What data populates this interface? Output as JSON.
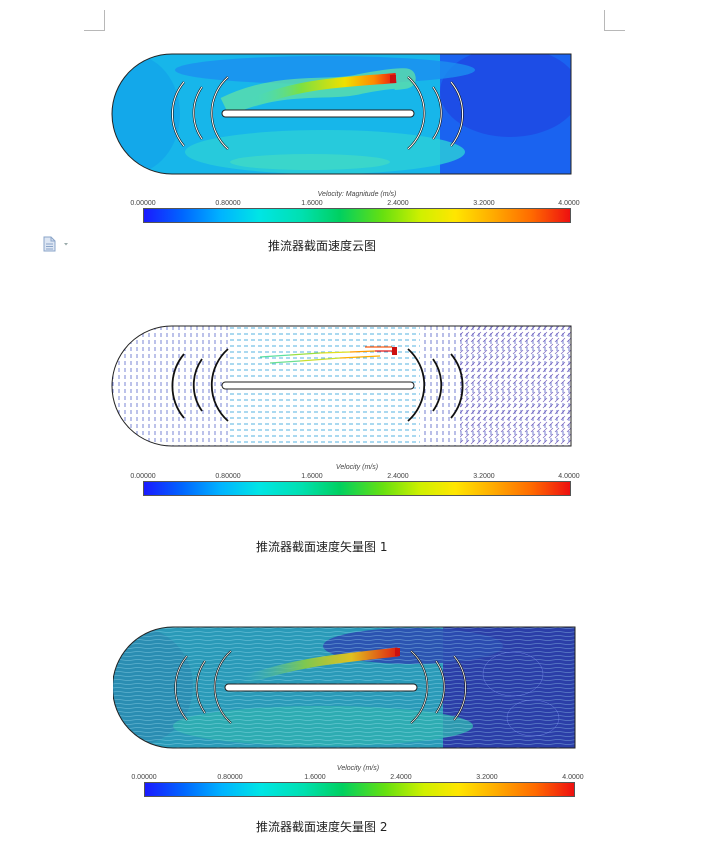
{
  "figures": [
    {
      "colorbar_title": "Velocity: Magnitude (m/s)",
      "ticks": [
        "0.00000",
        "0.80000",
        "1.6000",
        "2.4000",
        "3.2000",
        "4.0000"
      ],
      "caption": "推流器截面速度云图"
    },
    {
      "colorbar_title": "Velocity (m/s)",
      "ticks": [
        "0.00000",
        "0.80000",
        "1.6000",
        "2.4000",
        "3.2000",
        "4.0000"
      ],
      "caption": "推流器截面速度矢量图 1"
    },
    {
      "colorbar_title": "Velocity (m/s)",
      "ticks": [
        "0.00000",
        "0.80000",
        "1.6000",
        "2.4000",
        "3.2000",
        "4.0000"
      ],
      "caption": "推流器截面速度矢量图 2"
    }
  ],
  "icons": {
    "page": "document-icon",
    "dropdown": "chevron-down-icon"
  }
}
